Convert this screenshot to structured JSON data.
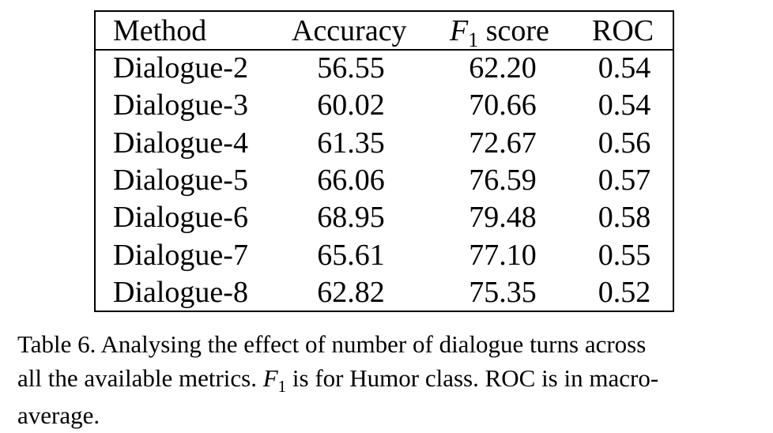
{
  "table": {
    "headers": {
      "method": "Method",
      "accuracy": "Accuracy",
      "f1_letter": "F",
      "f1_sub": "1",
      "f1_word": " score",
      "roc": "ROC"
    },
    "rows": [
      {
        "method": "Dialogue-2",
        "accuracy": "56.55",
        "f1": "62.20",
        "roc": "0.54"
      },
      {
        "method": "Dialogue-3",
        "accuracy": "60.02",
        "f1": "70.66",
        "roc": "0.54"
      },
      {
        "method": "Dialogue-4",
        "accuracy": "61.35",
        "f1": "72.67",
        "roc": "0.56"
      },
      {
        "method": "Dialogue-5",
        "accuracy": "66.06",
        "f1": "76.59",
        "roc": "0.57"
      },
      {
        "method": "Dialogue-6",
        "accuracy": "68.95",
        "f1": "79.48",
        "roc": "0.58"
      },
      {
        "method": "Dialogue-7",
        "accuracy": "65.61",
        "f1": "77.10",
        "roc": "0.55"
      },
      {
        "method": "Dialogue-8",
        "accuracy": "62.82",
        "f1": "75.35",
        "roc": "0.52"
      }
    ]
  },
  "caption": {
    "line1": "Table 6. Analysing the effect of number of dialogue turns across",
    "line2_a": "all the available metrics. ",
    "line2_f": "F",
    "line2_sub": "1",
    "line2_b": " is for Humor class. ROC is in macro-",
    "line3": "average."
  }
}
